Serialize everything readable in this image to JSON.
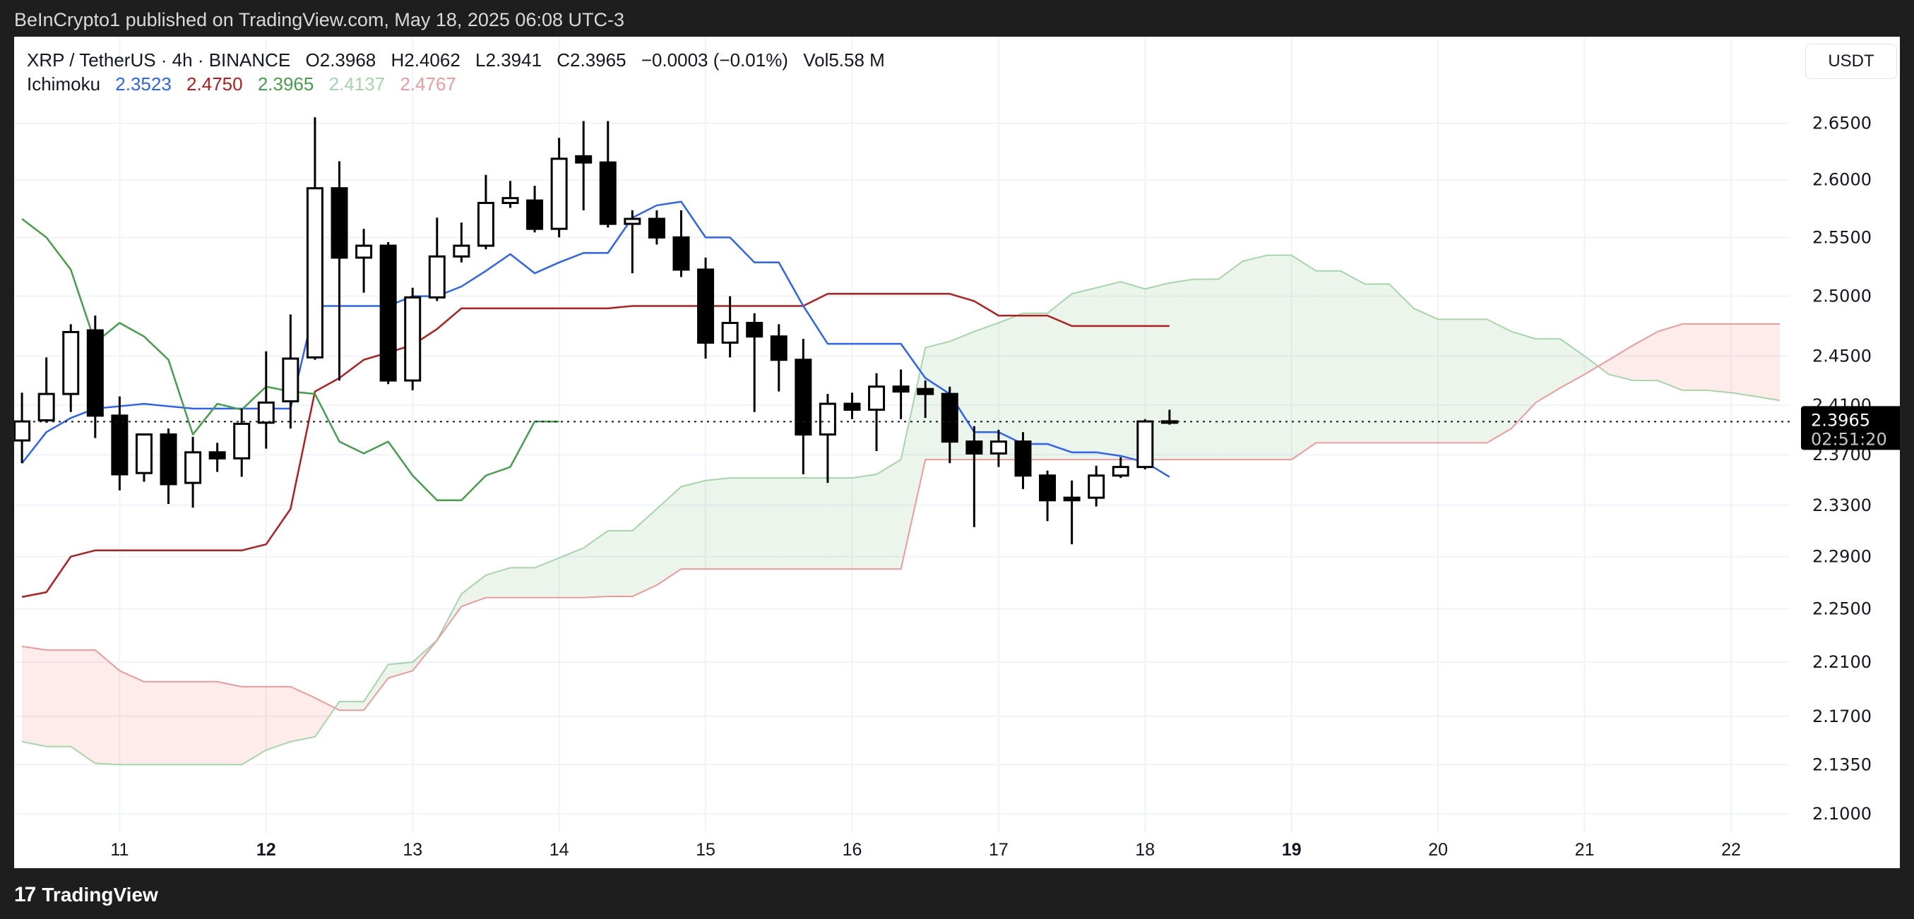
{
  "header": {
    "published": "BeInCrypto1 published on TradingView.com, May 18, 2025 06:08 UTC-3"
  },
  "legend": {
    "symbol": "XRP / TetherUS · 4h · BINANCE",
    "open": "O2.3968",
    "high": "H2.4062",
    "low": "L2.3941",
    "close": "C2.3965",
    "change": "−0.0003 (−0.01%)",
    "volume": "Vol5.58 M",
    "indicator": "Ichimoku",
    "values": [
      {
        "text": "2.3523",
        "color": "#2962ff"
      },
      {
        "text": "2.4750",
        "color": "#b71c1c"
      },
      {
        "text": "2.3965",
        "color": "#43a047"
      },
      {
        "text": "2.4137",
        "color": "#a5d6a7"
      },
      {
        "text": "2.4767",
        "color": "#ef9a9a"
      }
    ]
  },
  "price_axis": {
    "unit": "USDT"
  },
  "last_price": {
    "value": "2.3965",
    "countdown": "02:51:20"
  },
  "footer": {
    "logo": "TradingView"
  },
  "colors": {
    "tenkan": "#2962ff",
    "kijun": "#b71c1c",
    "chikou": "#43a047",
    "span_a": "#a5d6a7",
    "span_b": "#ef9a9a",
    "cloud_bull": "rgba(67,160,71,0.10)",
    "cloud_bear": "rgba(244,67,54,0.10)",
    "up_candle": "#ffffff",
    "down_candle": "#000000"
  },
  "chart_data": {
    "type": "candlestick",
    "interval": "4h",
    "first_candle": "May 10 08:00",
    "y_scale": "log",
    "ylim": [
      2.085,
      2.7
    ],
    "y_ticks": [
      "2.6500",
      "2.6000",
      "2.5500",
      "2.5000",
      "2.4500",
      "2.4100",
      "2.3700",
      "2.3300",
      "2.2900",
      "2.2500",
      "2.2100",
      "2.1700",
      "2.1350",
      "2.1000"
    ],
    "x_ticks": [
      {
        "label": "11",
        "day": 11
      },
      {
        "label": "12",
        "day": 12,
        "bold": true
      },
      {
        "label": "13",
        "day": 13
      },
      {
        "label": "14",
        "day": 14
      },
      {
        "label": "15",
        "day": 15
      },
      {
        "label": "16",
        "day": 16
      },
      {
        "label": "17",
        "day": 17
      },
      {
        "label": "18",
        "day": 18
      },
      {
        "label": "19",
        "day": 19,
        "bold": true
      },
      {
        "label": "20",
        "day": 20
      },
      {
        "label": "21",
        "day": 21
      },
      {
        "label": "22",
        "day": 22
      }
    ],
    "grid": true,
    "candles": [
      [
        2.3814,
        2.42,
        2.3632,
        2.3967
      ],
      [
        2.3976,
        2.449,
        2.3957,
        2.419
      ],
      [
        2.419,
        2.4765,
        2.4043,
        2.47
      ],
      [
        2.4714,
        2.4837,
        2.3833,
        2.4014
      ],
      [
        2.4014,
        2.417,
        2.3417,
        2.3544
      ],
      [
        2.3554,
        2.3871,
        2.3485,
        2.3862
      ],
      [
        2.3862,
        2.391,
        2.331,
        2.3466
      ],
      [
        2.3476,
        2.3843,
        2.3281,
        2.3719
      ],
      [
        2.3719,
        2.3795,
        2.3563,
        2.3671
      ],
      [
        2.3671,
        2.4071,
        2.3524,
        2.3948
      ],
      [
        2.3957,
        2.454,
        2.3748,
        2.412
      ],
      [
        2.413,
        2.4847,
        2.391,
        2.448
      ],
      [
        2.449,
        2.6554,
        2.447,
        2.5926
      ],
      [
        2.5926,
        2.6163,
        2.43,
        2.5327
      ],
      [
        2.5327,
        2.5574,
        2.503,
        2.5429
      ],
      [
        2.5429,
        2.546,
        2.427,
        2.43
      ],
      [
        2.43,
        2.5071,
        2.422,
        2.499
      ],
      [
        2.499,
        2.567,
        2.4959,
        2.5337
      ],
      [
        2.5337,
        2.5628,
        2.5286,
        2.5429
      ],
      [
        2.5429,
        2.6043,
        2.5398,
        2.5798
      ],
      [
        2.5798,
        2.599,
        2.5755,
        2.584
      ],
      [
        2.5819,
        2.5947,
        2.5543,
        2.5574
      ],
      [
        2.5574,
        2.637,
        2.55,
        2.6185
      ],
      [
        2.6207,
        2.652,
        2.5734,
        2.6152
      ],
      [
        2.6152,
        2.652,
        2.5585,
        2.5617
      ],
      [
        2.5617,
        2.5734,
        2.5194,
        2.566
      ],
      [
        2.566,
        2.5734,
        2.5439,
        2.55
      ],
      [
        2.55,
        2.5734,
        2.5163,
        2.5225
      ],
      [
        2.5225,
        2.5327,
        2.448,
        2.4612
      ],
      [
        2.4612,
        2.5,
        2.449,
        2.4776
      ],
      [
        2.4776,
        2.4857,
        2.4043,
        2.4663
      ],
      [
        2.4663,
        2.4765,
        2.421,
        2.447
      ],
      [
        2.447,
        2.4643,
        2.3544,
        2.3862
      ],
      [
        2.3862,
        2.419,
        2.3476,
        2.411
      ],
      [
        2.411,
        2.42,
        2.3986,
        2.4062
      ],
      [
        2.4062,
        2.436,
        2.3729,
        2.425
      ],
      [
        2.425,
        2.439,
        2.3986,
        2.421
      ],
      [
        2.423,
        2.43,
        2.3995,
        2.419
      ],
      [
        2.419,
        2.425,
        2.3632,
        2.3805
      ],
      [
        2.3805,
        2.3929,
        2.3129,
        2.371
      ],
      [
        2.371,
        2.39,
        2.3602,
        2.3805
      ],
      [
        2.3805,
        2.3881,
        2.3427,
        2.3534
      ],
      [
        2.3534,
        2.3573,
        2.3176,
        2.3339
      ],
      [
        2.3359,
        2.3495,
        2.2995,
        2.3339
      ],
      [
        2.3359,
        2.3612,
        2.329,
        2.3534
      ],
      [
        2.3534,
        2.368,
        2.3515,
        2.3602
      ],
      [
        2.3602,
        2.3986,
        2.3583,
        2.3967
      ],
      [
        2.3968,
        2.4062,
        2.3941,
        2.3965
      ]
    ],
    "ichimoku": {
      "displacement": 25,
      "tenkan": [
        2.3632,
        2.3881,
        2.3995,
        2.4071,
        2.409,
        2.411,
        2.409,
        2.4071,
        2.4071,
        2.4071,
        2.4071,
        2.4071,
        2.4918,
        2.4918,
        2.4918,
        2.4918,
        2.5,
        2.5,
        2.5082,
        2.5214,
        2.5357,
        2.5194,
        2.5286,
        2.5367,
        2.5367,
        2.567,
        2.5777,
        2.5809,
        2.55,
        2.55,
        2.5286,
        2.5286,
        2.4918,
        2.4602,
        2.4602,
        2.4602,
        2.4602,
        2.432,
        2.419,
        2.3881,
        2.3881,
        2.3786,
        2.3786,
        2.3719,
        2.3719,
        2.369,
        2.3641,
        2.3523
      ],
      "kijun": [
        2.2591,
        2.2627,
        2.29,
        2.2948,
        2.2948,
        2.2948,
        2.2948,
        2.2948,
        2.2948,
        2.2948,
        2.2995,
        2.3271,
        2.421,
        2.432,
        2.447,
        2.453,
        2.4592,
        2.4725,
        2.4898,
        2.4898,
        2.4898,
        2.4898,
        2.4898,
        2.4898,
        2.4898,
        2.4918,
        2.4918,
        2.4918,
        2.4918,
        2.4918,
        2.4918,
        2.4918,
        2.4918,
        2.502,
        2.502,
        2.502,
        2.502,
        2.502,
        2.502,
        2.4959,
        2.4837,
        2.4837,
        2.4837,
        2.475,
        2.475,
        2.475,
        2.475,
        2.475
      ],
      "span_a": [
        2.1516,
        2.1481,
        2.1481,
        2.1359,
        2.135,
        2.135,
        2.135,
        2.135,
        2.135,
        2.135,
        2.1455,
        2.1516,
        2.1551,
        2.1809,
        2.1809,
        2.2082,
        2.21,
        2.2264,
        2.2614,
        2.2757,
        2.2814,
        2.2814,
        2.289,
        2.2967,
        2.31,
        2.31,
        2.3271,
        2.3446,
        2.3495,
        2.3515,
        2.3515,
        2.3515,
        2.3515,
        2.3515,
        2.3515,
        2.3544,
        2.3661,
        2.457,
        2.4622,
        2.4704,
        2.4776,
        2.4857,
        2.4857,
        2.502,
        2.5071,
        2.5122,
        2.5061,
        2.5112,
        2.5143,
        2.5143,
        2.5296,
        2.5347,
        2.5347,
        2.5214,
        2.5214,
        2.5102,
        2.5102,
        2.4898,
        2.4806,
        2.4806,
        2.4806,
        2.4704,
        2.4643,
        2.4643,
        2.45,
        2.435,
        2.43,
        2.43,
        2.422,
        2.422,
        2.42,
        2.417,
        2.4137
      ],
      "span_b": [
        2.2218,
        2.2191,
        2.2191,
        2.2191,
        2.2036,
        2.1955,
        2.1955,
        2.1955,
        2.1955,
        2.1918,
        2.1918,
        2.1918,
        2.1836,
        2.1745,
        2.1745,
        2.1982,
        2.2036,
        2.2264,
        2.2519,
        2.2586,
        2.2586,
        2.2586,
        2.2586,
        2.2586,
        2.2595,
        2.2595,
        2.2681,
        2.2805,
        2.2805,
        2.2805,
        2.2805,
        2.2805,
        2.2805,
        2.2805,
        2.2805,
        2.2805,
        2.2805,
        2.3661,
        2.3661,
        2.3661,
        2.3661,
        2.3661,
        2.3661,
        2.3661,
        2.3661,
        2.3661,
        2.3661,
        2.3661,
        2.3661,
        2.3661,
        2.3661,
        2.3661,
        2.3661,
        2.3795,
        2.3795,
        2.3795,
        2.3795,
        2.3795,
        2.3795,
        2.3795,
        2.3795,
        2.391,
        2.412,
        2.424,
        2.435,
        2.447,
        2.4592,
        2.4704,
        2.4767,
        2.4767,
        2.4767,
        2.4767,
        2.4767
      ]
    }
  }
}
